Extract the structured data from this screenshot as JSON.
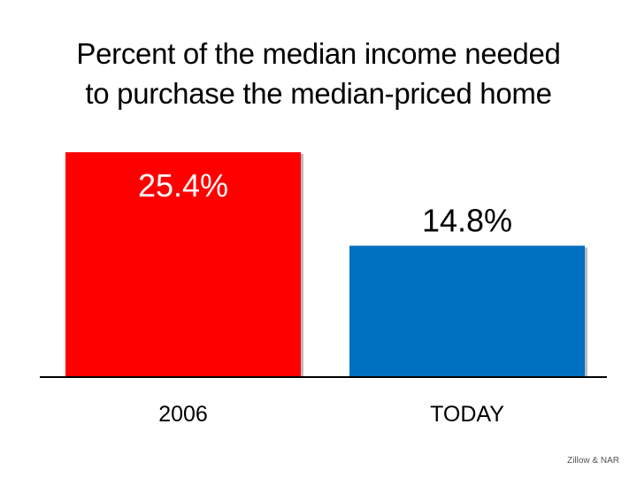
{
  "title_lines": [
    "Percent of the median income needed",
    "to purchase the median-priced home"
  ],
  "source": "Zillow & NAR",
  "chart_data": {
    "type": "bar",
    "categories": [
      "2006",
      "TODAY"
    ],
    "values": [
      25.4,
      14.8
    ],
    "value_labels": [
      "25.4%",
      "14.8%"
    ],
    "colors": [
      "#ff0000",
      "#0070c0"
    ],
    "title": "Percent of the median income needed to purchase the median-priced home",
    "xlabel": "",
    "ylabel": "",
    "ylim": [
      0,
      25.4
    ],
    "grid": false,
    "legend": "none"
  }
}
